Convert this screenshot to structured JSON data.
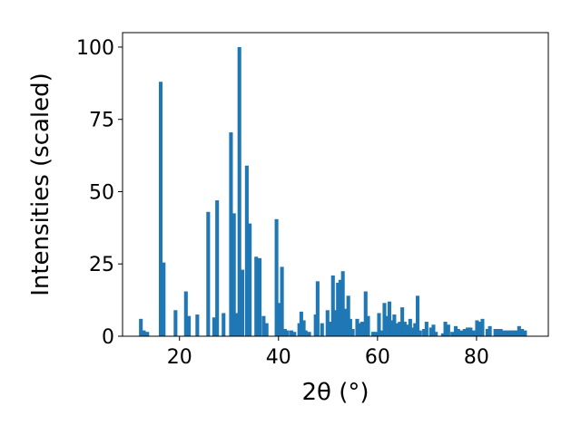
{
  "chart_data": {
    "type": "bar",
    "title": "",
    "xlabel": "2θ (°)",
    "ylabel": "Intensities (scaled)",
    "xlim": [
      8.5,
      94.5
    ],
    "ylim": [
      0,
      105
    ],
    "xticks": [
      20,
      40,
      60,
      80
    ],
    "yticks": [
      0,
      25,
      50,
      75,
      100
    ],
    "grid": false,
    "bar_color": "#1f77b4",
    "bar_width_units": 0.75,
    "points": [
      [
        12.2,
        6
      ],
      [
        12.8,
        2
      ],
      [
        13.5,
        1.5
      ],
      [
        16.2,
        88
      ],
      [
        16.8,
        25.5
      ],
      [
        19.2,
        9
      ],
      [
        21.3,
        15.5
      ],
      [
        21.9,
        7
      ],
      [
        23.6,
        7.5
      ],
      [
        25.8,
        43
      ],
      [
        27.0,
        6.5
      ],
      [
        27.6,
        47
      ],
      [
        28.9,
        8
      ],
      [
        30.4,
        70.5
      ],
      [
        31.0,
        42.5
      ],
      [
        31.5,
        8
      ],
      [
        32.1,
        100
      ],
      [
        32.7,
        23
      ],
      [
        33.6,
        59
      ],
      [
        34.2,
        39
      ],
      [
        35.5,
        27.5
      ],
      [
        36.2,
        27
      ],
      [
        37.0,
        7
      ],
      [
        37.6,
        4.5
      ],
      [
        39.6,
        40.5
      ],
      [
        40.2,
        11.5
      ],
      [
        40.7,
        24
      ],
      [
        41.3,
        2.5
      ],
      [
        41.8,
        2
      ],
      [
        42.6,
        2
      ],
      [
        43.2,
        1.5
      ],
      [
        44.2,
        4.5
      ],
      [
        44.6,
        8.5
      ],
      [
        45.1,
        5.5
      ],
      [
        45.5,
        2
      ],
      [
        46.2,
        1.5
      ],
      [
        47.5,
        7.5
      ],
      [
        47.9,
        19
      ],
      [
        48.8,
        4.5
      ],
      [
        49.9,
        9
      ],
      [
        50.4,
        5
      ],
      [
        51.0,
        21
      ],
      [
        51.6,
        9
      ],
      [
        52.0,
        18.5
      ],
      [
        52.5,
        19.5
      ],
      [
        53.0,
        22.5
      ],
      [
        53.6,
        9.5
      ],
      [
        54.1,
        14
      ],
      [
        54.5,
        6
      ],
      [
        55.0,
        2.5
      ],
      [
        55.9,
        6
      ],
      [
        56.4,
        4.5
      ],
      [
        56.9,
        5
      ],
      [
        57.6,
        15.5
      ],
      [
        58.1,
        7
      ],
      [
        59.1,
        1.5
      ],
      [
        59.6,
        1.5
      ],
      [
        60.3,
        8
      ],
      [
        60.9,
        2
      ],
      [
        61.4,
        11.5
      ],
      [
        61.9,
        7
      ],
      [
        62.4,
        12
      ],
      [
        62.9,
        5.5
      ],
      [
        63.4,
        7.5
      ],
      [
        64.0,
        4.5
      ],
      [
        64.5,
        5
      ],
      [
        65.0,
        10
      ],
      [
        65.5,
        5
      ],
      [
        66.1,
        4
      ],
      [
        66.6,
        6
      ],
      [
        67.1,
        3
      ],
      [
        67.6,
        4.5
      ],
      [
        68.1,
        14
      ],
      [
        68.6,
        2
      ],
      [
        69.4,
        2.5
      ],
      [
        69.9,
        5
      ],
      [
        70.8,
        3
      ],
      [
        71.3,
        4
      ],
      [
        71.8,
        1.5
      ],
      [
        73.2,
        1
      ],
      [
        73.7,
        5
      ],
      [
        74.3,
        4
      ],
      [
        75.1,
        1.5
      ],
      [
        75.8,
        3.5
      ],
      [
        76.3,
        2.5
      ],
      [
        77.0,
        2
      ],
      [
        77.6,
        2.5
      ],
      [
        78.2,
        3
      ],
      [
        78.8,
        3
      ],
      [
        79.4,
        2
      ],
      [
        80.1,
        5.5
      ],
      [
        80.6,
        5
      ],
      [
        81.2,
        6
      ],
      [
        82.2,
        2.5
      ],
      [
        82.7,
        3.5
      ],
      [
        83.8,
        2.5
      ],
      [
        84.4,
        2.5
      ],
      [
        84.9,
        2.5
      ],
      [
        85.6,
        2
      ],
      [
        86.2,
        2
      ],
      [
        86.8,
        2
      ],
      [
        87.4,
        2
      ],
      [
        88.0,
        2
      ],
      [
        88.6,
        3.5
      ],
      [
        89.2,
        2.5
      ],
      [
        89.8,
        2
      ]
    ]
  }
}
